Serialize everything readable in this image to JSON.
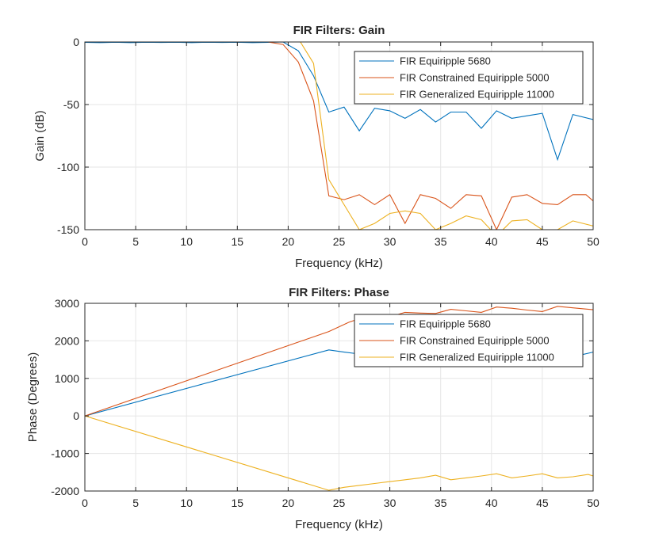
{
  "chart_data": [
    {
      "type": "line",
      "title": "FIR Filters: Gain",
      "xlabel": "Frequency (kHz)",
      "ylabel": "Gain (dB)",
      "xlim": [
        0,
        50
      ],
      "ylim": [
        -150,
        0
      ],
      "xticks": [
        "0",
        "5",
        "10",
        "15",
        "20",
        "25",
        "30",
        "35",
        "40",
        "45",
        "50"
      ],
      "yticks": [
        "0",
        "-50",
        "-100",
        "-150"
      ],
      "grid": true,
      "legend_position": "top-right",
      "series": [
        {
          "name": "FIR Equiripple 5680",
          "color": "#0072BD",
          "points": [
            [
              0,
              -0.3
            ],
            [
              1.5,
              -0.5
            ],
            [
              3,
              -0.2
            ],
            [
              4.5,
              -0.5
            ],
            [
              6,
              -0.2
            ],
            [
              7.5,
              -0.4
            ],
            [
              9,
              -0.2
            ],
            [
              10.5,
              -0.5
            ],
            [
              12,
              -0.2
            ],
            [
              13.5,
              -0.4
            ],
            [
              15,
              -0.2
            ],
            [
              16.5,
              -0.5
            ],
            [
              18,
              -0.3
            ],
            [
              19.5,
              0
            ],
            [
              21,
              -7
            ],
            [
              22.5,
              -27
            ],
            [
              24,
              -56
            ],
            [
              25.5,
              -52
            ],
            [
              27,
              -71
            ],
            [
              28.5,
              -53
            ],
            [
              30,
              -55
            ],
            [
              31.5,
              -61
            ],
            [
              33,
              -54
            ],
            [
              34.5,
              -64
            ],
            [
              36,
              -56
            ],
            [
              37.5,
              -56
            ],
            [
              39,
              -69
            ],
            [
              40.5,
              -55
            ],
            [
              42,
              -61
            ],
            [
              43.5,
              -59
            ],
            [
              45,
              -57
            ],
            [
              46.5,
              -94
            ],
            [
              48,
              -58
            ],
            [
              50,
              -62
            ]
          ]
        },
        {
          "name": "FIR Constrained Equiripple 5000",
          "color": "#D95319",
          "points": [
            [
              0,
              0
            ],
            [
              3,
              0
            ],
            [
              6,
              0
            ],
            [
              9,
              0
            ],
            [
              12,
              0
            ],
            [
              15,
              0
            ],
            [
              18,
              0
            ],
            [
              19.5,
              -2
            ],
            [
              21,
              -16
            ],
            [
              22.5,
              -47
            ],
            [
              24,
              -123
            ],
            [
              25.5,
              -126
            ],
            [
              27,
              -122
            ],
            [
              28.5,
              -130
            ],
            [
              30,
              -122
            ],
            [
              31.5,
              -145
            ],
            [
              33,
              -122
            ],
            [
              34.5,
              -125
            ],
            [
              36,
              -133
            ],
            [
              37.5,
              -122
            ],
            [
              39,
              -123
            ],
            [
              40.5,
              -150
            ],
            [
              42,
              -124
            ],
            [
              43.5,
              -122
            ],
            [
              45,
              -129
            ],
            [
              46.5,
              -130
            ],
            [
              48,
              -122
            ],
            [
              49.3,
              -122
            ],
            [
              50,
              -127
            ]
          ]
        },
        {
          "name": "FIR Generalized Equiripple 11000",
          "color": "#EDB120",
          "points": [
            [
              0,
              0
            ],
            [
              3,
              0
            ],
            [
              6,
              0
            ],
            [
              9,
              0
            ],
            [
              12,
              0
            ],
            [
              15,
              0
            ],
            [
              18,
              0
            ],
            [
              20,
              0
            ],
            [
              21.2,
              0
            ],
            [
              22.5,
              -17
            ],
            [
              24,
              -110
            ],
            [
              25.5,
              -130
            ],
            [
              27,
              -150
            ],
            [
              28.5,
              -145
            ],
            [
              30,
              -137
            ],
            [
              31.5,
              -135
            ],
            [
              33,
              -137
            ],
            [
              34.5,
              -150
            ],
            [
              36,
              -145
            ],
            [
              37.5,
              -139
            ],
            [
              39,
              -142
            ],
            [
              40.5,
              -155
            ],
            [
              42,
              -143
            ],
            [
              43.5,
              -142
            ],
            [
              45,
              -150
            ],
            [
              46.5,
              -150
            ],
            [
              48,
              -143
            ],
            [
              50,
              -147
            ]
          ]
        }
      ]
    },
    {
      "type": "line",
      "title": "FIR Filters: Phase",
      "xlabel": "Frequency (kHz)",
      "ylabel": "Phase (Degrees)",
      "xlim": [
        0,
        50
      ],
      "ylim": [
        -2000,
        3000
      ],
      "xticks": [
        "0",
        "5",
        "10",
        "15",
        "20",
        "25",
        "30",
        "35",
        "40",
        "45",
        "50"
      ],
      "yticks": [
        "3000",
        "2000",
        "1000",
        "0",
        "-1000",
        "-2000"
      ],
      "grid": true,
      "legend_position": "top-right",
      "series": [
        {
          "name": "FIR Equiripple 5680",
          "color": "#0072BD",
          "points": [
            [
              0,
              0
            ],
            [
              24,
              1760
            ],
            [
              25.5,
              1700
            ],
            [
              27,
              1650
            ],
            [
              28.5,
              1620
            ],
            [
              30,
              1600
            ],
            [
              32,
              1610
            ],
            [
              34,
              1620
            ],
            [
              36,
              1660
            ],
            [
              38,
              1690
            ],
            [
              40,
              1700
            ],
            [
              42,
              1680
            ],
            [
              44,
              1650
            ],
            [
              46,
              1640
            ],
            [
              48,
              1700
            ],
            [
              49,
              1640
            ],
            [
              50,
              1700
            ]
          ]
        },
        {
          "name": "FIR Constrained Equiripple 5000",
          "color": "#D95319",
          "points": [
            [
              0,
              0
            ],
            [
              24,
              2250
            ],
            [
              26,
              2500
            ],
            [
              28,
              2680
            ],
            [
              30,
              2640
            ],
            [
              31.5,
              2760
            ],
            [
              33,
              2740
            ],
            [
              34.5,
              2730
            ],
            [
              36,
              2840
            ],
            [
              37.5,
              2800
            ],
            [
              39,
              2760
            ],
            [
              40.5,
              2900
            ],
            [
              42,
              2870
            ],
            [
              43.5,
              2820
            ],
            [
              45,
              2780
            ],
            [
              46.5,
              2920
            ],
            [
              48,
              2880
            ],
            [
              50,
              2830
            ]
          ]
        },
        {
          "name": "FIR Generalized Equiripple 11000",
          "color": "#EDB120",
          "points": [
            [
              0,
              0
            ],
            [
              24,
              -1980
            ],
            [
              25.5,
              -1900
            ],
            [
              27,
              -1850
            ],
            [
              28.5,
              -1800
            ],
            [
              30,
              -1750
            ],
            [
              31.5,
              -1700
            ],
            [
              33,
              -1650
            ],
            [
              34.5,
              -1580
            ],
            [
              36,
              -1700
            ],
            [
              37.5,
              -1650
            ],
            [
              39,
              -1600
            ],
            [
              40.5,
              -1540
            ],
            [
              42,
              -1650
            ],
            [
              43.5,
              -1600
            ],
            [
              45,
              -1540
            ],
            [
              46.5,
              -1650
            ],
            [
              48,
              -1620
            ],
            [
              49.5,
              -1560
            ],
            [
              50,
              -1600
            ]
          ]
        }
      ]
    }
  ]
}
